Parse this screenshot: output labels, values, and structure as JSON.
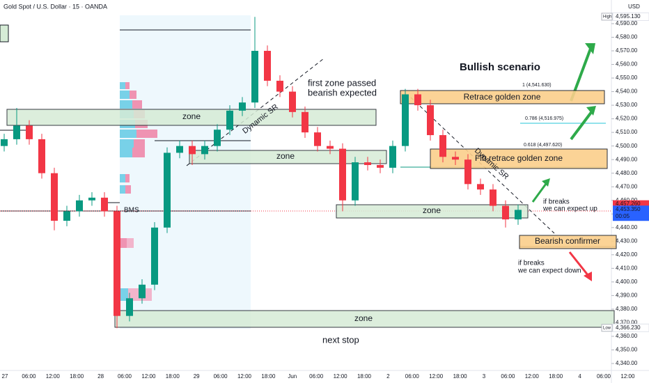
{
  "chart_data": {
    "type": "candlestick",
    "title": "Gold Spot / U.S. Dollar · 15 · OANDA",
    "currency": "USD",
    "up_color": "#089981",
    "down_color": "#f23645",
    "ylim": [
      4335.9,
      4607.4
    ],
    "yticks": [
      {
        "value": 4340,
        "label": "4,340.00"
      },
      {
        "value": 4350,
        "label": "4,350.00"
      },
      {
        "value": 4360,
        "label": "4,360.00"
      },
      {
        "value": 4370,
        "label": "4,370.00"
      },
      {
        "value": 4380,
        "label": "4,380.00"
      },
      {
        "value": 4390,
        "label": "4,390.00"
      },
      {
        "value": 4400,
        "label": "4,400.00"
      },
      {
        "value": 4410,
        "label": "4,410.00"
      },
      {
        "value": 4420,
        "label": "4,420.00"
      },
      {
        "value": 4430,
        "label": "4,430.00"
      },
      {
        "value": 4440,
        "label": "4,440.00"
      },
      {
        "value": 4450,
        "label": "4,450.00"
      },
      {
        "value": 4460,
        "label": "4,460.00"
      },
      {
        "value": 4470,
        "label": "4,470.00"
      },
      {
        "value": 4480,
        "label": "4,480.00"
      },
      {
        "value": 4490,
        "label": "4,490.00"
      },
      {
        "value": 4500,
        "label": "4,500.00"
      },
      {
        "value": 4510,
        "label": "4,510.00"
      },
      {
        "value": 4520,
        "label": "4,520.00"
      },
      {
        "value": 4530,
        "label": "4,530.00"
      },
      {
        "value": 4540,
        "label": "4,540.00"
      },
      {
        "value": 4550,
        "label": "4,550.00"
      },
      {
        "value": 4560,
        "label": "4,560.00"
      },
      {
        "value": 4570,
        "label": "4,570.00"
      },
      {
        "value": 4580,
        "label": "4,580.00"
      },
      {
        "value": 4590,
        "label": "4,590.00"
      }
    ],
    "grid": false,
    "x_labels": [
      "27",
      "06:00",
      "12:00",
      "18:00",
      "28",
      "06:00",
      "12:00",
      "18:00",
      "29",
      "06:00",
      "12:00",
      "18:00",
      "Jun",
      "06:00",
      "12:00",
      "18:00",
      "2",
      "06:00",
      "12:00",
      "18:00",
      "3",
      "06:00",
      "12:00",
      "18:00",
      "4",
      "06:00",
      "12:00"
    ],
    "open": [
      4500,
      4505,
      4515,
      4505,
      4480,
      4445,
      4452,
      4460,
      4462,
      4452,
      4375,
      4388,
      4398,
      4440,
      4495,
      4500,
      4494,
      4500,
      4512,
      4526,
      4532,
      4570,
      4548,
      4540,
      4525,
      4510,
      4500,
      4498,
      4460,
      4488,
      4486,
      4484,
      4500,
      4538,
      4530,
      4508,
      4492,
      4490,
      4472,
      4468,
      4456,
      4446
    ],
    "high": [
      4509,
      4528,
      4519,
      4509,
      4484,
      4456,
      4464,
      4466,
      4466,
      4456,
      4392,
      4402,
      4444,
      4499,
      4504,
      4504,
      4504,
      4516,
      4530,
      4536,
      4595,
      4574,
      4552,
      4544,
      4529,
      4514,
      4504,
      4502,
      4492,
      4492,
      4490,
      4504,
      4542,
      4542,
      4534,
      4512,
      4496,
      4494,
      4476,
      4472,
      4460,
      4457
    ],
    "low": [
      4496,
      4501,
      4501,
      4476,
      4438,
      4441,
      4448,
      4456,
      4448,
      4366,
      4371,
      4384,
      4394,
      4436,
      4491,
      4486,
      4490,
      4496,
      4508,
      4522,
      4528,
      4544,
      4536,
      4521,
      4506,
      4496,
      4494,
      4452,
      4456,
      4482,
      4480,
      4480,
      4496,
      4526,
      4504,
      4488,
      4486,
      4468,
      4464,
      4452,
      4440,
      4442
    ],
    "close": [
      4505,
      4515,
      4505,
      4480,
      4445,
      4452,
      4460,
      4462,
      4452,
      4375,
      4388,
      4398,
      4440,
      4495,
      4500,
      4494,
      4500,
      4512,
      4526,
      4532,
      4570,
      4548,
      4540,
      4525,
      4510,
      4500,
      4498,
      4460,
      4488,
      4486,
      4484,
      4500,
      4538,
      4530,
      4508,
      4492,
      4490,
      4472,
      4468,
      4456,
      4446,
      4453
    ],
    "price_labels": [
      {
        "value": 4595.13,
        "label": "4,595.130",
        "tag": "High"
      },
      {
        "value": 4457.26,
        "label": "4,457.260"
      },
      {
        "value": 4453.35,
        "label": "4,453.350",
        "countdown": "00:05"
      },
      {
        "value": 4366.23,
        "label": "4,366.230",
        "tag": "Low"
      }
    ],
    "zones": [
      "zone",
      "zone",
      "zone",
      "zone",
      "Retrace golden zone",
      "Fib retrace golden zone",
      "Bearish confirmer"
    ],
    "annotations": [
      "first zone passed",
      "bearish expected",
      "Dynamic SR",
      "Dynamic SR",
      "Bullish scenario",
      "if breaks",
      "we can expect up",
      "if breaks",
      "we can expect down",
      "next stop",
      "BMS"
    ],
    "fib_labels": [
      "1 (4,541.630)",
      "0.786 (4,516.975)",
      "0.618 (4,497.620)"
    ]
  }
}
